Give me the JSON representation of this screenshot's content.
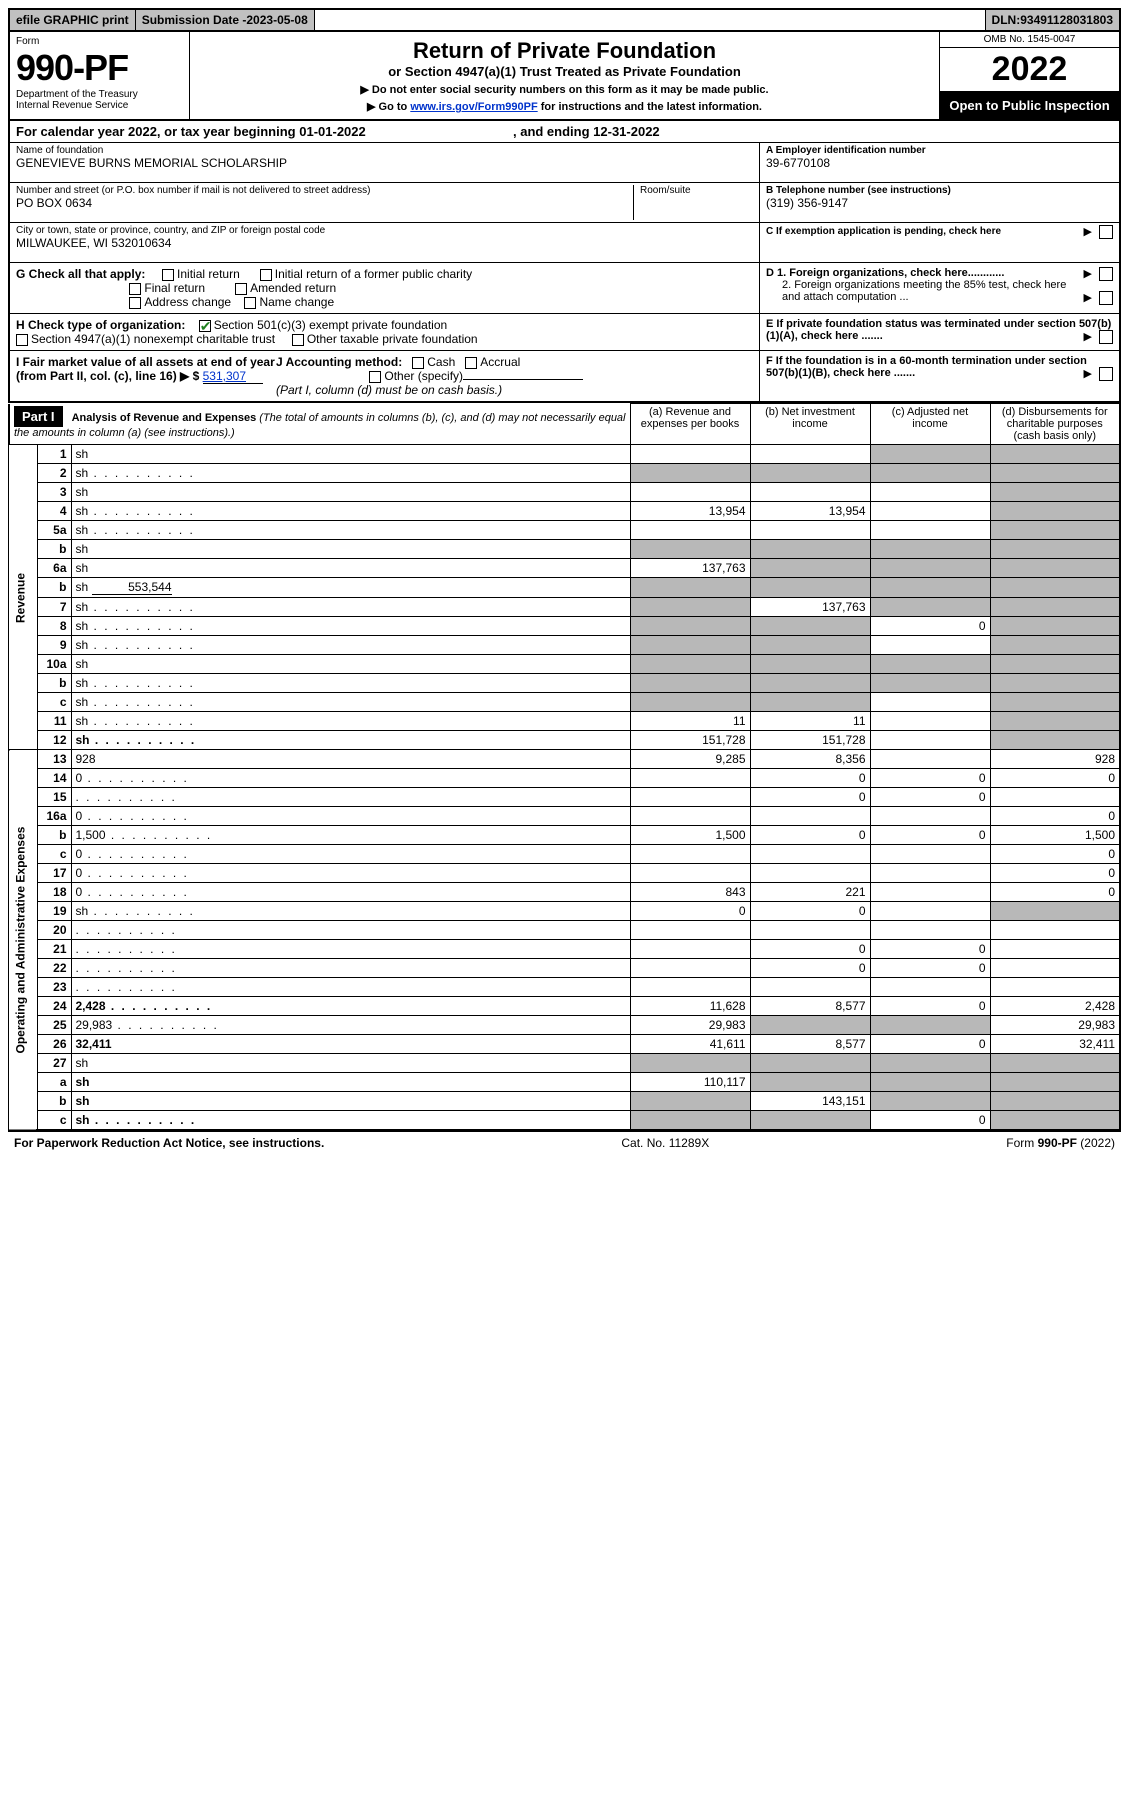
{
  "topbar": {
    "efile": "efile GRAPHIC print",
    "subdate_label": "Submission Date - ",
    "subdate": "2023-05-08",
    "dln_label": "DLN: ",
    "dln": "93491128031803"
  },
  "header": {
    "form_word": "Form",
    "form_num": "990-PF",
    "dept": "Department of the Treasury",
    "irs": "Internal Revenue Service",
    "title": "Return of Private Foundation",
    "subtitle": "or Section 4947(a)(1) Trust Treated as Private Foundation",
    "note1": "▶ Do not enter social security numbers on this form as it may be made public.",
    "note2_pre": "▶ Go to ",
    "note2_link": "www.irs.gov/Form990PF",
    "note2_post": " for instructions and the latest information.",
    "omb": "OMB No. 1545-0047",
    "year": "2022",
    "open": "Open to Public Inspection"
  },
  "calendar": {
    "text_pre": "For calendar year 2022, or tax year beginning ",
    "begin": "01-01-2022",
    "text_mid": " , and ending ",
    "end": "12-31-2022"
  },
  "entity": {
    "name_label": "Name of foundation",
    "name": "GENEVIEVE BURNS MEMORIAL SCHOLARSHIP",
    "addr_label": "Number and street (or P.O. box number if mail is not delivered to street address)",
    "addr": "PO BOX 0634",
    "room_label": "Room/suite",
    "room": "",
    "city_label": "City or town, state or province, country, and ZIP or foreign postal code",
    "city": "MILWAUKEE, WI  532010634",
    "ein_label": "A Employer identification number",
    "ein": "39-6770108",
    "tel_label": "B Telephone number (see instructions)",
    "tel": "(319) 356-9147",
    "c_label": "C If exemption application is pending, check here",
    "d1": "D 1. Foreign organizations, check here............",
    "d2": "2. Foreign organizations meeting the 85% test, check here and attach computation ...",
    "e_label": "E  If private foundation status was terminated under section 507(b)(1)(A), check here .......",
    "f_label": "F  If the foundation is in a 60-month termination under section 507(b)(1)(B), check here ......."
  },
  "checks": {
    "g_label": "G Check all that apply:",
    "initial": "Initial return",
    "initial_former": "Initial return of a former public charity",
    "final": "Final return",
    "amended": "Amended return",
    "addr_change": "Address change",
    "name_change": "Name change",
    "h_label": "H Check type of organization:",
    "h_501c3": "Section 501(c)(3) exempt private foundation",
    "h_4947": "Section 4947(a)(1) nonexempt charitable trust",
    "h_other": "Other taxable private foundation",
    "i_label": "I Fair market value of all assets at end of year (from Part II, col. (c), line 16) ▶ $",
    "i_val": "531,307",
    "j_label": "J Accounting method:",
    "j_cash": "Cash",
    "j_accrual": "Accrual",
    "j_other": "Other (specify)",
    "j_note": "(Part I, column (d) must be on cash basis.)"
  },
  "part1": {
    "label": "Part I",
    "title": "Analysis of Revenue and Expenses",
    "title_note": "(The total of amounts in columns (b), (c), and (d) may not necessarily equal the amounts in column (a) (see instructions).)",
    "col_a": "(a)  Revenue and expenses per books",
    "col_b": "(b)  Net investment income",
    "col_c": "(c)  Adjusted net income",
    "col_d": "(d)  Disbursements for charitable purposes (cash basis only)"
  },
  "side": {
    "revenue": "Revenue",
    "expenses": "Operating and Administrative Expenses"
  },
  "rows": [
    {
      "n": "1",
      "d": "sh",
      "a": "",
      "b": "",
      "c": "sh"
    },
    {
      "n": "2",
      "d": "sh",
      "dots": true,
      "a": "sh",
      "b": "sh",
      "c": "sh"
    },
    {
      "n": "3",
      "d": "sh",
      "a": "",
      "b": "",
      "c": ""
    },
    {
      "n": "4",
      "d": "sh",
      "dots": true,
      "a": "13,954",
      "b": "13,954",
      "c": ""
    },
    {
      "n": "5a",
      "d": "sh",
      "dots": true,
      "a": "",
      "b": "",
      "c": ""
    },
    {
      "n": "b",
      "d": "sh",
      "a": "sh",
      "b": "sh",
      "c": "sh"
    },
    {
      "n": "6a",
      "d": "sh",
      "a": "137,763",
      "b": "sh",
      "c": "sh"
    },
    {
      "n": "b",
      "d": "sh",
      "inline_val": "553,544",
      "a": "sh",
      "b": "sh",
      "c": "sh"
    },
    {
      "n": "7",
      "d": "sh",
      "dots": true,
      "a": "sh",
      "b": "137,763",
      "c": "sh"
    },
    {
      "n": "8",
      "d": "sh",
      "dots": true,
      "a": "sh",
      "b": "sh",
      "c": "0"
    },
    {
      "n": "9",
      "d": "sh",
      "dots": true,
      "a": "sh",
      "b": "sh",
      "c": ""
    },
    {
      "n": "10a",
      "d": "sh",
      "a": "sh",
      "b": "sh",
      "c": "sh"
    },
    {
      "n": "b",
      "d": "sh",
      "dots": true,
      "a": "sh",
      "b": "sh",
      "c": "sh"
    },
    {
      "n": "c",
      "d": "sh",
      "dots": true,
      "a": "sh",
      "b": "sh",
      "c": ""
    },
    {
      "n": "11",
      "d": "sh",
      "dots": true,
      "a": "11",
      "b": "11",
      "c": ""
    },
    {
      "n": "12",
      "d": "sh",
      "bold": true,
      "dots": true,
      "a": "151,728",
      "b": "151,728",
      "c": ""
    },
    {
      "n": "13",
      "d": "928",
      "a": "9,285",
      "b": "8,356",
      "c": ""
    },
    {
      "n": "14",
      "d": "0",
      "dots": true,
      "a": "",
      "b": "0",
      "c": "0"
    },
    {
      "n": "15",
      "d": "",
      "dots": true,
      "a": "",
      "b": "0",
      "c": "0"
    },
    {
      "n": "16a",
      "d": "0",
      "dots": true,
      "a": "",
      "b": "",
      "c": ""
    },
    {
      "n": "b",
      "d": "1,500",
      "dots": true,
      "a": "1,500",
      "b": "0",
      "c": "0"
    },
    {
      "n": "c",
      "d": "0",
      "dots": true,
      "a": "",
      "b": "",
      "c": ""
    },
    {
      "n": "17",
      "d": "0",
      "dots": true,
      "a": "",
      "b": "",
      "c": ""
    },
    {
      "n": "18",
      "d": "0",
      "dots": true,
      "a": "843",
      "b": "221",
      "c": ""
    },
    {
      "n": "19",
      "d": "sh",
      "dots": true,
      "a": "0",
      "b": "0",
      "c": ""
    },
    {
      "n": "20",
      "d": "",
      "dots": true,
      "a": "",
      "b": "",
      "c": ""
    },
    {
      "n": "21",
      "d": "",
      "dots": true,
      "a": "",
      "b": "0",
      "c": "0"
    },
    {
      "n": "22",
      "d": "",
      "dots": true,
      "a": "",
      "b": "0",
      "c": "0"
    },
    {
      "n": "23",
      "d": "",
      "dots": true,
      "a": "",
      "b": "",
      "c": ""
    },
    {
      "n": "24",
      "d": "2,428",
      "bold": true,
      "dots": true,
      "a": "11,628",
      "b": "8,577",
      "c": "0"
    },
    {
      "n": "25",
      "d": "29,983",
      "dots": true,
      "a": "29,983",
      "b": "sh",
      "c": "sh"
    },
    {
      "n": "26",
      "d": "32,411",
      "bold": true,
      "a": "41,611",
      "b": "8,577",
      "c": "0"
    },
    {
      "n": "27",
      "d": "sh",
      "a": "sh",
      "b": "sh",
      "c": "sh"
    },
    {
      "n": "a",
      "d": "sh",
      "bold": true,
      "a": "110,117",
      "b": "sh",
      "c": "sh"
    },
    {
      "n": "b",
      "d": "sh",
      "bold": true,
      "a": "sh",
      "b": "143,151",
      "c": "sh"
    },
    {
      "n": "c",
      "d": "sh",
      "bold": true,
      "dots": true,
      "a": "sh",
      "b": "sh",
      "c": "0"
    }
  ],
  "footer": {
    "pra": "For Paperwork Reduction Act Notice, see instructions.",
    "cat": "Cat. No. 11289X",
    "formref": "Form 990-PF (2022)"
  },
  "colors": {
    "shaded": "#b8b8b8",
    "topbar_bg": "#c0c0c0",
    "link": "#0033cc",
    "check_green": "#208020"
  }
}
